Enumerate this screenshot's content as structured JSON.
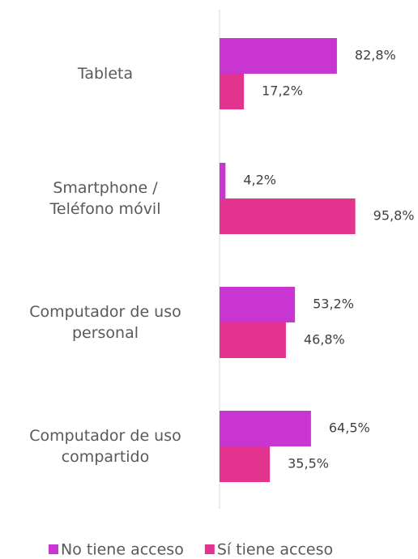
{
  "chart_data": {
    "type": "bar",
    "orientation": "horizontal",
    "categories": [
      "Tableta",
      "Smartphone /\nTeléfono móvil",
      "Computador de uso\npersonal",
      "Computador de uso\ncompartido"
    ],
    "series": [
      {
        "name": "No tiene acceso",
        "color": "#c935d0",
        "values": [
          82.8,
          4.2,
          53.2,
          64.5
        ],
        "value_labels": [
          "82,8%",
          "4,2%",
          "53,2%",
          "64,5%"
        ]
      },
      {
        "name": "Sí tiene acceso",
        "color": "#e2338e",
        "values": [
          17.2,
          95.8,
          46.8,
          35.5
        ],
        "value_labels": [
          "17,2%",
          "95,8%",
          "46,8%",
          "35,5%"
        ]
      }
    ],
    "legend": "bottom"
  }
}
